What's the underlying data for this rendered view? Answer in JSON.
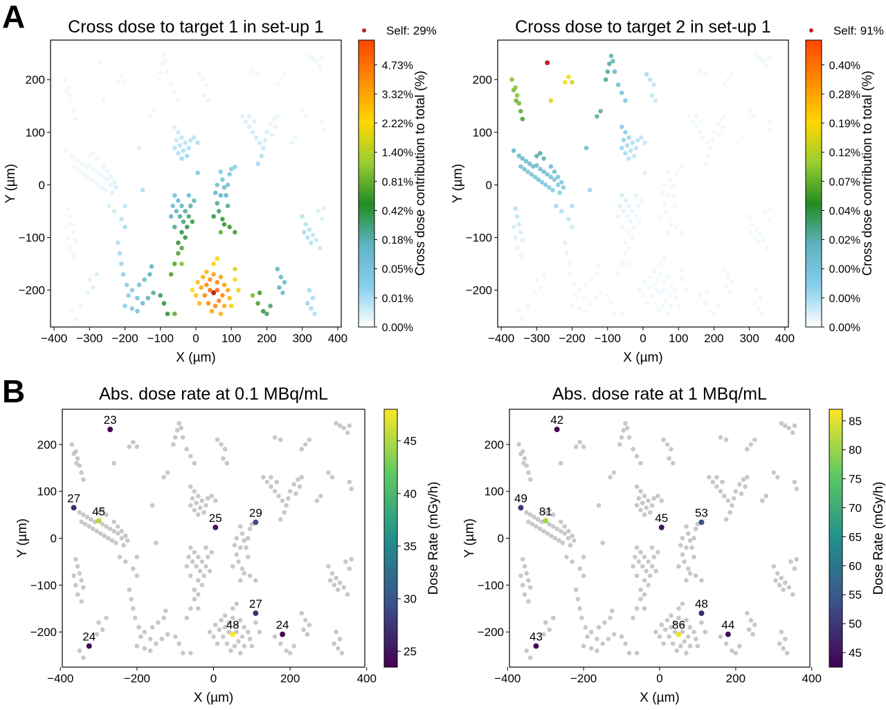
{
  "figure": {
    "panel_labels": [
      "A",
      "B"
    ]
  },
  "colors": {
    "crossdose_stops": [
      "#ffffff",
      "#87ceeb",
      "#5fb3c4",
      "#228b22",
      "#9acd32",
      "#ffd700",
      "#ff8c00",
      "#ff4500"
    ],
    "self_marker": "#c0241c",
    "neutral_cell": "#c8c8c8",
    "viridis_stops": [
      "#440154",
      "#3b528b",
      "#21918c",
      "#5ec962",
      "#fde725"
    ]
  },
  "chart_data": [
    {
      "type": "scatter",
      "panel": "A",
      "title": "Cross dose to target 1 in set-up 1",
      "xlabel": "X (µm)",
      "ylabel": "Y (µm)",
      "xlim": [
        -410,
        410
      ],
      "ylim": [
        -270,
        275
      ],
      "xticks": [
        -400,
        -300,
        -200,
        -100,
        0,
        100,
        200,
        300,
        400
      ],
      "yticks": [
        -200,
        -100,
        0,
        100,
        200
      ],
      "legend": {
        "label": "Self: 29%",
        "placement": "top-right"
      },
      "target": {
        "x": 50,
        "y": -205
      },
      "colorbar": {
        "label": "Cross dose contribution to total (%)",
        "ticks": [
          "0.00%",
          "0.01%",
          "0.05%",
          "0.18%",
          "0.42%",
          "0.81%",
          "1.40%",
          "2.22%",
          "3.32%",
          "4.73%"
        ],
        "scale": "nonlinear"
      },
      "grid": false
    },
    {
      "type": "scatter",
      "panel": "A",
      "title": "Cross dose to target 2 in set-up 1",
      "xlabel": "X (µm)",
      "ylabel": "Y (µm)",
      "xlim": [
        -410,
        410
      ],
      "ylim": [
        -270,
        275
      ],
      "xticks": [
        -400,
        -300,
        -200,
        -100,
        0,
        100,
        200,
        300,
        400
      ],
      "yticks": [
        -200,
        -100,
        0,
        100,
        200
      ],
      "legend": {
        "label": "Self: 91%",
        "placement": "top-right"
      },
      "target": {
        "x": -270,
        "y": 232
      },
      "colorbar": {
        "label": "Cross dose contribution to total (%)",
        "ticks": [
          "0.00%",
          "0.00%",
          "0.00%",
          "0.02%",
          "0.04%",
          "0.07%",
          "0.12%",
          "0.19%",
          "0.28%",
          "0.40%"
        ],
        "scale": "nonlinear"
      },
      "grid": false
    },
    {
      "type": "scatter",
      "panel": "B",
      "title": "Abs. dose rate at 0.1 MBq/mL",
      "xlabel": "X (µm)",
      "ylabel": "Y (µm)",
      "xlim": [
        -395,
        395
      ],
      "ylim": [
        -275,
        275
      ],
      "xticks": [
        -400,
        -200,
        0,
        200,
        400
      ],
      "yticks": [
        -200,
        -100,
        0,
        100,
        200
      ],
      "colorbar": {
        "label": "Dose Rate (mGy/h)",
        "min": 23.5,
        "max": 48,
        "ticks": [
          25,
          30,
          35,
          40,
          45
        ]
      },
      "targets": [
        {
          "x": -270,
          "y": 232,
          "value": 23,
          "label": "23"
        },
        {
          "x": -365,
          "y": 65,
          "value": 27,
          "label": "27"
        },
        {
          "x": -300,
          "y": 37,
          "value": 45,
          "label": "45"
        },
        {
          "x": 5,
          "y": 23,
          "value": 25,
          "label": "25"
        },
        {
          "x": 110,
          "y": 34,
          "value": 29,
          "label": "29"
        },
        {
          "x": 110,
          "y": -160,
          "value": 27,
          "label": "27"
        },
        {
          "x": 50,
          "y": -205,
          "value": 48,
          "label": "48"
        },
        {
          "x": 180,
          "y": -205,
          "value": 24,
          "label": "24"
        },
        {
          "x": -325,
          "y": -230,
          "value": 24,
          "label": "24"
        }
      ],
      "grid": false
    },
    {
      "type": "scatter",
      "panel": "B",
      "title": "Abs. dose rate at 1 MBq/mL",
      "xlabel": "X (µm)",
      "ylabel": "Y (µm)",
      "xlim": [
        -395,
        395
      ],
      "ylim": [
        -275,
        275
      ],
      "xticks": [
        -400,
        -200,
        0,
        200,
        400
      ],
      "yticks": [
        -200,
        -100,
        0,
        100,
        200
      ],
      "colorbar": {
        "label": "Dose Rate (mGy/h)",
        "min": 42.5,
        "max": 87,
        "ticks": [
          45,
          50,
          55,
          60,
          65,
          70,
          75,
          80,
          85
        ]
      },
      "targets": [
        {
          "x": -270,
          "y": 232,
          "value": 42,
          "label": "42"
        },
        {
          "x": -365,
          "y": 65,
          "value": 49,
          "label": "49"
        },
        {
          "x": -300,
          "y": 37,
          "value": 81,
          "label": "81"
        },
        {
          "x": 5,
          "y": 23,
          "value": 45,
          "label": "45"
        },
        {
          "x": 110,
          "y": 34,
          "value": 53,
          "label": "53"
        },
        {
          "x": 110,
          "y": -160,
          "value": 48,
          "label": "48"
        },
        {
          "x": 50,
          "y": -205,
          "value": 86,
          "label": "86"
        },
        {
          "x": 180,
          "y": -205,
          "value": 44,
          "label": "44"
        },
        {
          "x": -325,
          "y": -230,
          "value": 43,
          "label": "43"
        }
      ],
      "grid": false
    }
  ],
  "cells": [
    {
      "x": -365,
      "y": 65
    },
    {
      "x": -300,
      "y": 37
    },
    {
      "x": -270,
      "y": 232
    },
    {
      "x": 5,
      "y": 23
    },
    {
      "x": 110,
      "y": 34
    },
    {
      "x": 110,
      "y": -160
    },
    {
      "x": 50,
      "y": -205
    },
    {
      "x": 180,
      "y": -205
    },
    {
      "x": -325,
      "y": -230
    },
    {
      "x": -360,
      "y": 185
    },
    {
      "x": -355,
      "y": 170
    },
    {
      "x": -350,
      "y": 155
    },
    {
      "x": -345,
      "y": 140
    },
    {
      "x": -340,
      "y": 125
    },
    {
      "x": -370,
      "y": 200
    },
    {
      "x": -365,
      "y": 180
    },
    {
      "x": -358,
      "y": 160
    },
    {
      "x": -220,
      "y": 195
    },
    {
      "x": -210,
      "y": 205
    },
    {
      "x": -200,
      "y": 195
    },
    {
      "x": -130,
      "y": 130
    },
    {
      "x": -120,
      "y": 140
    },
    {
      "x": -90,
      "y": 245
    },
    {
      "x": -95,
      "y": 230
    },
    {
      "x": -100,
      "y": 215
    },
    {
      "x": -105,
      "y": 200
    },
    {
      "x": -85,
      "y": 235
    },
    {
      "x": -80,
      "y": 215
    },
    {
      "x": -70,
      "y": 190
    },
    {
      "x": -60,
      "y": 175
    },
    {
      "x": -50,
      "y": 160
    },
    {
      "x": -350,
      "y": 55
    },
    {
      "x": -340,
      "y": 50
    },
    {
      "x": -330,
      "y": 45
    },
    {
      "x": -320,
      "y": 40
    },
    {
      "x": -310,
      "y": 35
    },
    {
      "x": -345,
      "y": 35
    },
    {
      "x": -335,
      "y": 30
    },
    {
      "x": -325,
      "y": 25
    },
    {
      "x": -315,
      "y": 20
    },
    {
      "x": -305,
      "y": 15
    },
    {
      "x": -295,
      "y": 10
    },
    {
      "x": -285,
      "y": 5
    },
    {
      "x": -275,
      "y": 0
    },
    {
      "x": -265,
      "y": -5
    },
    {
      "x": -255,
      "y": -10
    },
    {
      "x": -290,
      "y": 30
    },
    {
      "x": -280,
      "y": 25
    },
    {
      "x": -270,
      "y": 20
    },
    {
      "x": -260,
      "y": 15
    },
    {
      "x": -250,
      "y": 10
    },
    {
      "x": -300,
      "y": 55
    },
    {
      "x": -290,
      "y": 60
    },
    {
      "x": -280,
      "y": 50
    },
    {
      "x": -240,
      "y": 0
    },
    {
      "x": -235,
      "y": -15
    },
    {
      "x": -260,
      "y": 35
    },
    {
      "x": -250,
      "y": 25
    },
    {
      "x": -240,
      "y": 15
    },
    {
      "x": -230,
      "y": 5
    },
    {
      "x": -225,
      "y": -5
    },
    {
      "x": -60,
      "y": 110
    },
    {
      "x": -50,
      "y": 100
    },
    {
      "x": -40,
      "y": 90
    },
    {
      "x": -30,
      "y": 80
    },
    {
      "x": -20,
      "y": 70
    },
    {
      "x": -55,
      "y": 85
    },
    {
      "x": -45,
      "y": 75
    },
    {
      "x": -35,
      "y": 65
    },
    {
      "x": -25,
      "y": 55
    },
    {
      "x": -15,
      "y": 85
    },
    {
      "x": -5,
      "y": 90
    },
    {
      "x": 5,
      "y": 80
    },
    {
      "x": -50,
      "y": 60
    },
    {
      "x": -40,
      "y": 50
    },
    {
      "x": -60,
      "y": 70
    },
    {
      "x": 70,
      "y": 25
    },
    {
      "x": 75,
      "y": 10
    },
    {
      "x": 80,
      "y": -5
    },
    {
      "x": 70,
      "y": -20
    },
    {
      "x": 60,
      "y": -35
    },
    {
      "x": 65,
      "y": -50
    },
    {
      "x": 75,
      "y": -65
    },
    {
      "x": 85,
      "y": -20
    },
    {
      "x": 90,
      "y": 0
    },
    {
      "x": 60,
      "y": 0
    },
    {
      "x": 55,
      "y": -15
    },
    {
      "x": 90,
      "y": -40
    },
    {
      "x": 95,
      "y": 20
    },
    {
      "x": 100,
      "y": 30
    },
    {
      "x": 50,
      "y": -60
    },
    {
      "x": 80,
      "y": -75
    },
    {
      "x": 95,
      "y": -80
    },
    {
      "x": 110,
      "y": -90
    },
    {
      "x": 70,
      "y": -90
    },
    {
      "x": -60,
      "y": -20
    },
    {
      "x": -50,
      "y": -30
    },
    {
      "x": -40,
      "y": -40
    },
    {
      "x": -30,
      "y": -50
    },
    {
      "x": -20,
      "y": -60
    },
    {
      "x": -55,
      "y": -50
    },
    {
      "x": -45,
      "y": -60
    },
    {
      "x": -35,
      "y": -70
    },
    {
      "x": -25,
      "y": -80
    },
    {
      "x": -15,
      "y": -40
    },
    {
      "x": -5,
      "y": -30
    },
    {
      "x": -65,
      "y": -40
    },
    {
      "x": -70,
      "y": -60
    },
    {
      "x": -40,
      "y": -90
    },
    {
      "x": -30,
      "y": -100
    },
    {
      "x": -50,
      "y": -110
    },
    {
      "x": -40,
      "y": -120
    },
    {
      "x": -20,
      "y": -20
    },
    {
      "x": -10,
      "y": -70
    },
    {
      "x": -60,
      "y": -80
    },
    {
      "x": 130,
      "y": 130
    },
    {
      "x": 140,
      "y": 120
    },
    {
      "x": 150,
      "y": 110
    },
    {
      "x": 160,
      "y": 100
    },
    {
      "x": 170,
      "y": 90
    },
    {
      "x": 180,
      "y": 80
    },
    {
      "x": 190,
      "y": 70
    },
    {
      "x": 185,
      "y": 55
    },
    {
      "x": 175,
      "y": 40
    },
    {
      "x": 200,
      "y": 100
    },
    {
      "x": 210,
      "y": 115
    },
    {
      "x": 220,
      "y": 125
    },
    {
      "x": 230,
      "y": 130
    },
    {
      "x": 150,
      "y": 130
    },
    {
      "x": 165,
      "y": 120
    },
    {
      "x": 195,
      "y": 85
    },
    {
      "x": 215,
      "y": 95
    },
    {
      "x": 225,
      "y": 110
    },
    {
      "x": -360,
      "y": -45
    },
    {
      "x": -355,
      "y": -60
    },
    {
      "x": -350,
      "y": -75
    },
    {
      "x": -345,
      "y": -90
    },
    {
      "x": -340,
      "y": -105
    },
    {
      "x": -365,
      "y": -80
    },
    {
      "x": -360,
      "y": -100
    },
    {
      "x": -355,
      "y": -120
    },
    {
      "x": -345,
      "y": -135
    },
    {
      "x": -200,
      "y": -80
    },
    {
      "x": -210,
      "y": -65
    },
    {
      "x": -220,
      "y": -110
    },
    {
      "x": -215,
      "y": -130
    },
    {
      "x": -210,
      "y": -150
    },
    {
      "x": -205,
      "y": -170
    },
    {
      "x": -195,
      "y": -190
    },
    {
      "x": -190,
      "y": -210
    },
    {
      "x": -200,
      "y": -230
    },
    {
      "x": -180,
      "y": -200
    },
    {
      "x": -165,
      "y": -215
    },
    {
      "x": -150,
      "y": -225
    },
    {
      "x": -135,
      "y": -215
    },
    {
      "x": -120,
      "y": -205
    },
    {
      "x": -160,
      "y": -190
    },
    {
      "x": -145,
      "y": -180
    },
    {
      "x": -130,
      "y": -170
    },
    {
      "x": -125,
      "y": -155
    },
    {
      "x": -180,
      "y": -235
    },
    {
      "x": -165,
      "y": -240
    },
    {
      "x": -300,
      "y": -180
    },
    {
      "x": -290,
      "y": -195
    },
    {
      "x": -305,
      "y": -205
    },
    {
      "x": -350,
      "y": -240
    },
    {
      "x": -340,
      "y": -255
    },
    {
      "x": -100,
      "y": -210
    },
    {
      "x": -90,
      "y": -225
    },
    {
      "x": -80,
      "y": -245
    },
    {
      "x": -60,
      "y": -245
    },
    {
      "x": -70,
      "y": -170
    },
    {
      "x": -60,
      "y": -150
    },
    {
      "x": -50,
      "y": -130
    },
    {
      "x": -40,
      "y": -150
    },
    {
      "x": 20,
      "y": -175
    },
    {
      "x": 30,
      "y": -165
    },
    {
      "x": 40,
      "y": -180
    },
    {
      "x": 50,
      "y": -170
    },
    {
      "x": 60,
      "y": -185
    },
    {
      "x": 70,
      "y": -175
    },
    {
      "x": 80,
      "y": -190
    },
    {
      "x": 90,
      "y": -200
    },
    {
      "x": 75,
      "y": -210
    },
    {
      "x": 65,
      "y": -220
    },
    {
      "x": 55,
      "y": -230
    },
    {
      "x": 45,
      "y": -240
    },
    {
      "x": 35,
      "y": -225
    },
    {
      "x": 25,
      "y": -210
    },
    {
      "x": 15,
      "y": -195
    },
    {
      "x": 5,
      "y": -185
    },
    {
      "x": 40,
      "y": -200
    },
    {
      "x": 30,
      "y": -190
    },
    {
      "x": 60,
      "y": -200
    },
    {
      "x": 80,
      "y": -230
    },
    {
      "x": 70,
      "y": -245
    },
    {
      "x": 95,
      "y": -215
    },
    {
      "x": 100,
      "y": -230
    },
    {
      "x": 50,
      "y": -150
    },
    {
      "x": 60,
      "y": -140
    },
    {
      "x": 0,
      "y": -210
    },
    {
      "x": -10,
      "y": -200
    },
    {
      "x": 10,
      "y": -225
    },
    {
      "x": 110,
      "y": -180
    },
    {
      "x": 120,
      "y": -200
    },
    {
      "x": 160,
      "y": -210
    },
    {
      "x": 175,
      "y": -225
    },
    {
      "x": 190,
      "y": -240
    },
    {
      "x": 200,
      "y": -245
    },
    {
      "x": 210,
      "y": -230
    },
    {
      "x": 230,
      "y": -160
    },
    {
      "x": 240,
      "y": -175
    },
    {
      "x": 250,
      "y": -185
    },
    {
      "x": 235,
      "y": -195
    },
    {
      "x": 245,
      "y": -205
    },
    {
      "x": 300,
      "y": -60
    },
    {
      "x": 310,
      "y": -75
    },
    {
      "x": 320,
      "y": -85
    },
    {
      "x": 330,
      "y": -95
    },
    {
      "x": 340,
      "y": -105
    },
    {
      "x": 305,
      "y": -90
    },
    {
      "x": 315,
      "y": -100
    },
    {
      "x": 325,
      "y": -110
    },
    {
      "x": 345,
      "y": -50
    },
    {
      "x": 355,
      "y": -65
    },
    {
      "x": 360,
      "y": -45
    },
    {
      "x": 350,
      "y": -120
    },
    {
      "x": 320,
      "y": -200
    },
    {
      "x": 330,
      "y": -215
    },
    {
      "x": 325,
      "y": -235
    },
    {
      "x": 315,
      "y": -225
    },
    {
      "x": 335,
      "y": -245
    },
    {
      "x": 320,
      "y": 245
    },
    {
      "x": 330,
      "y": 240
    },
    {
      "x": 340,
      "y": 235
    },
    {
      "x": 350,
      "y": 225
    },
    {
      "x": 355,
      "y": 240
    },
    {
      "x": 300,
      "y": 140
    },
    {
      "x": 310,
      "y": 130
    },
    {
      "x": 355,
      "y": 120
    },
    {
      "x": 360,
      "y": 105
    },
    {
      "x": 280,
      "y": 90
    },
    {
      "x": 270,
      "y": 80
    },
    {
      "x": 240,
      "y": 200
    },
    {
      "x": 250,
      "y": 210
    },
    {
      "x": 230,
      "y": 190
    },
    {
      "x": 160,
      "y": 215
    },
    {
      "x": 175,
      "y": 210
    },
    {
      "x": 10,
      "y": 210
    },
    {
      "x": 20,
      "y": 200
    },
    {
      "x": 30,
      "y": 190
    },
    {
      "x": 25,
      "y": 170
    },
    {
      "x": 35,
      "y": 160
    },
    {
      "x": -160,
      "y": 70
    },
    {
      "x": -200,
      "y": -40
    },
    {
      "x": -280,
      "y": -170
    },
    {
      "x": -260,
      "y": 160
    },
    {
      "x": -150,
      "y": -10
    },
    {
      "x": -245,
      "y": -40
    },
    {
      "x": -230,
      "y": -50
    }
  ]
}
